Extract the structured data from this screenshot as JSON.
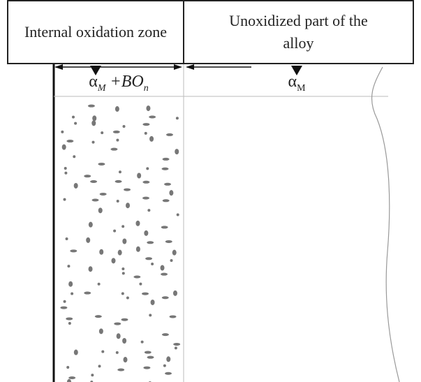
{
  "zones": [
    {
      "title": "Internal oxidation zone",
      "phase": {
        "alpha": "α",
        "alpha_sub": "M",
        "plus": "+",
        "oxide": "BO",
        "oxide_sub": "n"
      }
    },
    {
      "title": "Unoxidized part of the alloy",
      "phase": {
        "alpha": "α",
        "alpha_sub": "M"
      }
    }
  ]
}
